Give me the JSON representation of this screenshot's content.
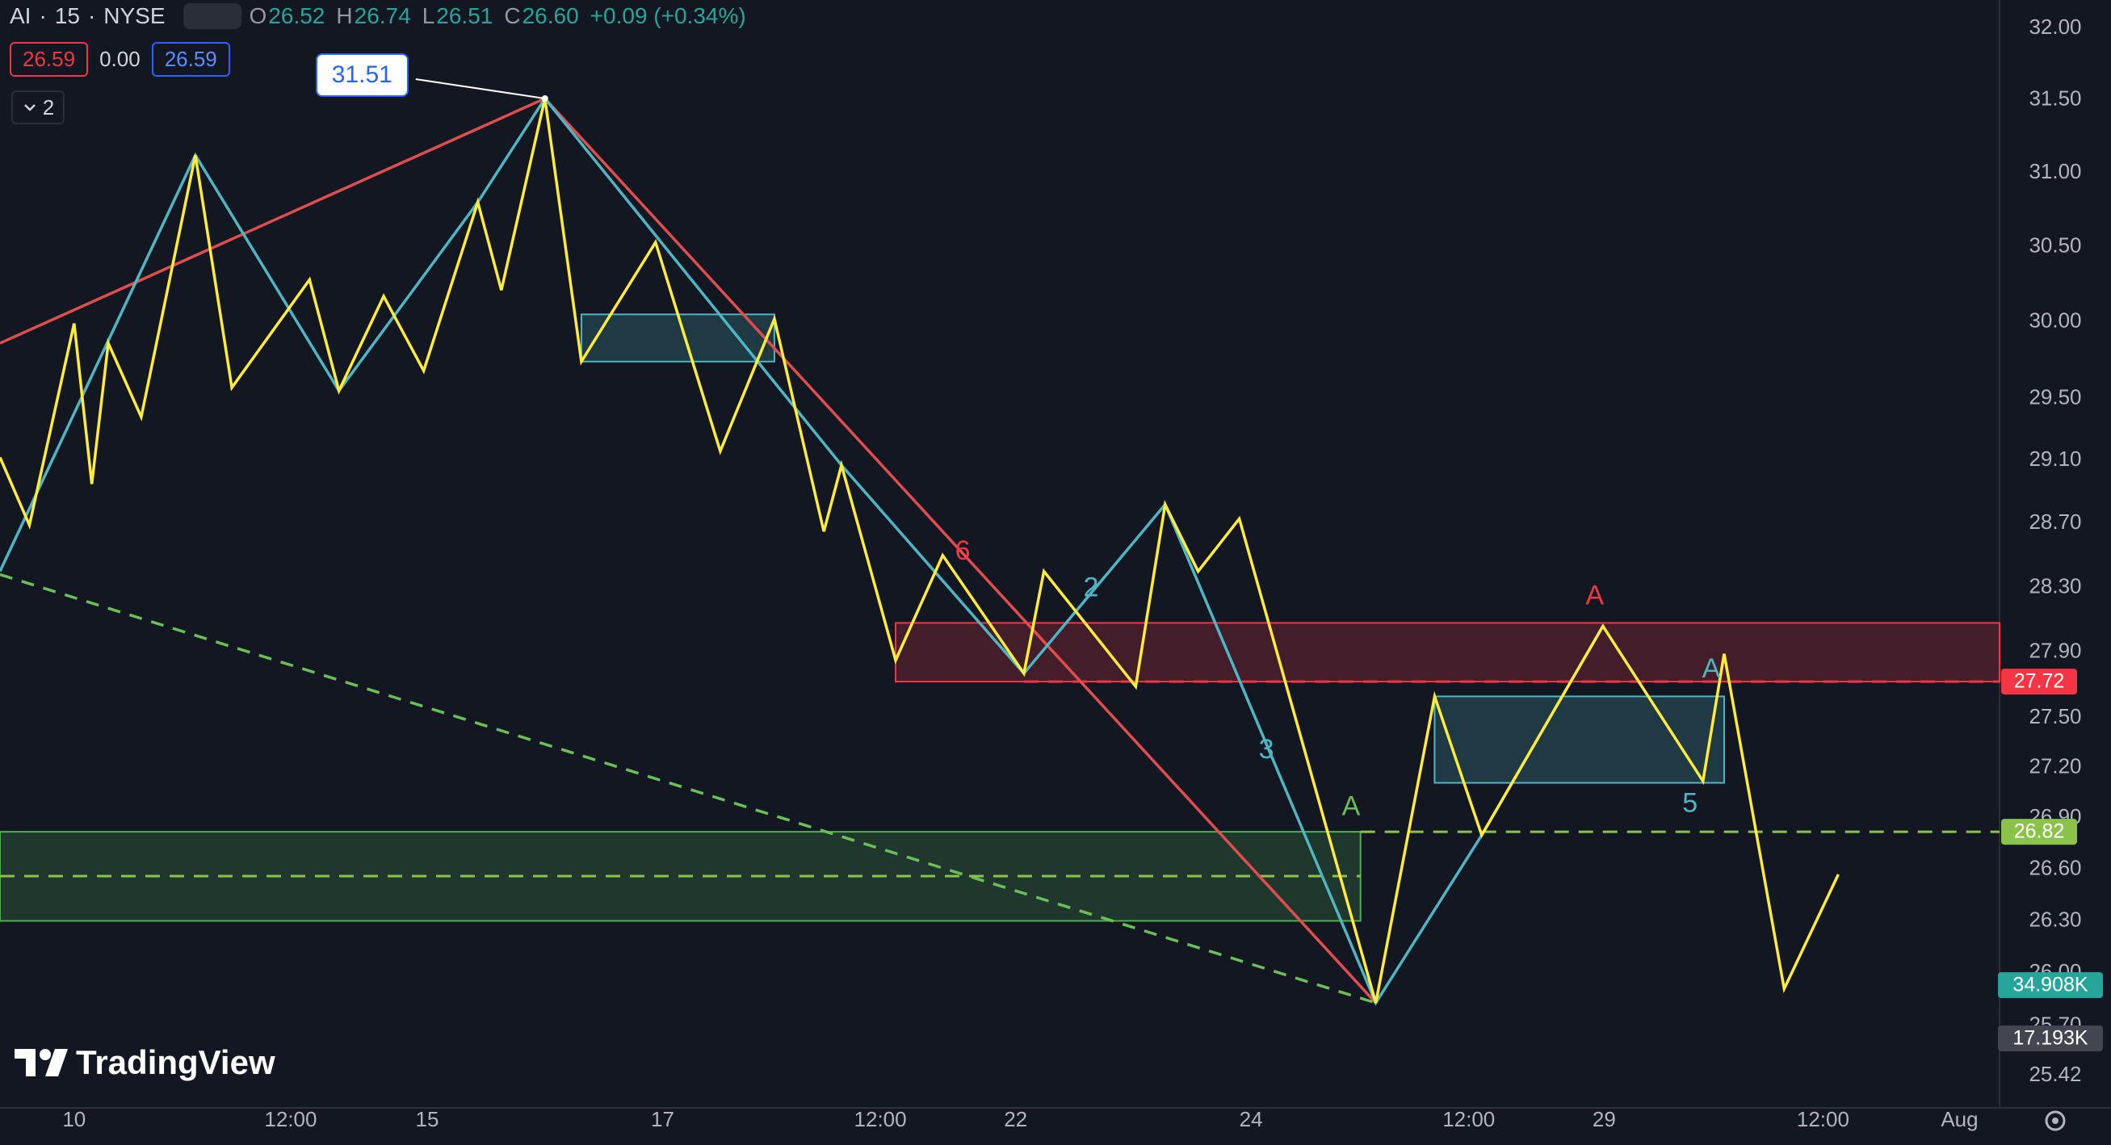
{
  "header": {
    "symbol": "AI",
    "interval": "15",
    "exchange": "NYSE",
    "ohlc": [
      {
        "key": "O",
        "value": "26.52"
      },
      {
        "key": "H",
        "value": "26.74"
      },
      {
        "key": "L",
        "value": "26.51"
      },
      {
        "key": "C",
        "value": "26.60"
      }
    ],
    "change": "+0.09 (+0.34%)",
    "sell": "26.59",
    "spread": "0.00",
    "buy": "26.59",
    "indicators": "2"
  },
  "watermark": "TradingView",
  "chart_data": {
    "type": "line",
    "log_scale": true,
    "grid": false,
    "xlim": [
      -0.63,
      16.36
    ],
    "ylim": [
      25.25,
      32.15
    ],
    "xticks": [
      {
        "value": 0,
        "label": "10"
      },
      {
        "value": 1.84,
        "label": "12:00"
      },
      {
        "value": 3.0,
        "label": "15"
      },
      {
        "value": 5.0,
        "label": "17"
      },
      {
        "value": 6.85,
        "label": "12:00"
      },
      {
        "value": 8.0,
        "label": "22"
      },
      {
        "value": 10.0,
        "label": "24"
      },
      {
        "value": 11.85,
        "label": "12:00"
      },
      {
        "value": 13.0,
        "label": "29"
      },
      {
        "value": 14.86,
        "label": "12:00"
      },
      {
        "value": 16.02,
        "label": "Aug"
      }
    ],
    "yticks": [
      {
        "value": 32,
        "label": "32.00"
      },
      {
        "value": 31.5,
        "label": "31.50"
      },
      {
        "value": 31,
        "label": "31.00"
      },
      {
        "value": 30.5,
        "label": "30.50"
      },
      {
        "value": 30,
        "label": "30.00"
      },
      {
        "value": 29.5,
        "label": "29.50"
      },
      {
        "value": 29.1,
        "label": "29.10"
      },
      {
        "value": 28.7,
        "label": "28.70"
      },
      {
        "value": 28.3,
        "label": "28.30"
      },
      {
        "value": 27.9,
        "label": "27.90"
      },
      {
        "value": 27.5,
        "label": "27.50"
      },
      {
        "value": 27.2,
        "label": "27.20"
      },
      {
        "value": 26.9,
        "label": "26.90"
      },
      {
        "value": 26.6,
        "label": "26.60"
      },
      {
        "value": 26.3,
        "label": "26.30"
      },
      {
        "value": 26,
        "label": "26.00"
      },
      {
        "value": 25.7,
        "label": "25.70"
      },
      25.42
    ],
    "zones": [
      {
        "x": [
          -0.63,
          10.93
        ],
        "low": 26.3,
        "high": 26.82,
        "color": "#4caf50"
      },
      {
        "x": [
          6.98,
          16.36
        ],
        "low": 27.72,
        "high": 28.08,
        "color": "#f23645"
      },
      {
        "x": [
          4.31,
          5.95
        ],
        "low": 29.74,
        "high": 30.05,
        "color": "#4db6c2"
      },
      {
        "x": [
          11.56,
          14.02
        ],
        "low": 27.11,
        "high": 27.63,
        "color": "#4db6c2"
      }
    ],
    "levels": [
      {
        "value": 27.72,
        "x": [
          8.07,
          16.36
        ],
        "color": "#f23645",
        "tag": true
      },
      {
        "value": 26.82,
        "x": [
          10.93,
          16.36
        ],
        "color": "#8bc34a",
        "tag": true
      },
      {
        "value": 26.56,
        "x": [
          -0.63,
          10.93
        ],
        "color": "#8bc34a",
        "tag": false
      }
    ],
    "series": [
      {
        "color": "#e04d4d",
        "dash": false,
        "x": [
          -0.63,
          4.0,
          11.06
        ],
        "values": [
          29.86,
          31.51,
          25.83
        ]
      },
      {
        "color": "#6bbf59",
        "dash": true,
        "x": [
          -0.63,
          11.06
        ],
        "values": [
          28.38,
          25.83
        ]
      },
      {
        "color": "#4db6c2",
        "dash": false,
        "x": [
          -0.63,
          1.03,
          2.25,
          3.43,
          4.0,
          6.52,
          8.07,
          9.27,
          11.06,
          11.96,
          12.99
        ],
        "values": [
          28.4,
          31.12,
          29.55,
          30.8,
          31.51,
          29.07,
          27.77,
          28.82,
          25.83,
          26.8,
          28.06
        ]
      },
      {
        "color": "#ffeb3b",
        "dash": false,
        "x": [
          -0.63,
          -0.38,
          0,
          0.15,
          0.29,
          0.57,
          1.03,
          1.34,
          2.0,
          2.25,
          2.63,
          2.97,
          3.43,
          3.63,
          4.0,
          4.31,
          4.94,
          5.49,
          5.95,
          6.37,
          6.52,
          6.98,
          7.38,
          8.07,
          8.24,
          9.02,
          9.27,
          9.55,
          9.9,
          11.06,
          11.56,
          11.96,
          12.99,
          13.84,
          14.02,
          14.53,
          14.99
        ],
        "values": [
          29.12,
          28.69,
          29.99,
          28.95,
          29.86,
          29.38,
          31.12,
          29.57,
          30.28,
          29.55,
          30.17,
          29.68,
          30.8,
          30.21,
          31.51,
          29.74,
          30.53,
          29.16,
          30.02,
          28.65,
          29.07,
          27.85,
          28.5,
          27.77,
          28.4,
          27.69,
          28.82,
          28.4,
          28.73,
          25.83,
          27.63,
          26.8,
          28.06,
          27.12,
          27.89,
          25.91,
          26.57
        ]
      }
    ],
    "annotations": [
      {
        "text": "6",
        "x": 7.55,
        "y": 28.52,
        "color": "#f23645"
      },
      {
        "text": "2",
        "x": 8.64,
        "y": 28.29,
        "color": "#4db6c2"
      },
      {
        "text": "3",
        "x": 10.13,
        "y": 27.3,
        "color": "#4db6c2"
      },
      {
        "text": "A",
        "x": 10.85,
        "y": 26.96,
        "color": "#6bbf59"
      },
      {
        "text": "A",
        "x": 12.92,
        "y": 28.24,
        "color": "#f23645"
      },
      {
        "text": "A",
        "x": 13.91,
        "y": 27.79,
        "color": "#4db6c2"
      },
      {
        "text": "5",
        "x": 13.73,
        "y": 26.98,
        "color": "#4db6c2"
      }
    ],
    "high_label": {
      "x": 4.0,
      "value": 31.51
    },
    "volume_tags": [
      {
        "text": "34.908K",
        "color": "#26a69a"
      },
      {
        "text": "17.193K",
        "color": "#434651"
      }
    ]
  }
}
